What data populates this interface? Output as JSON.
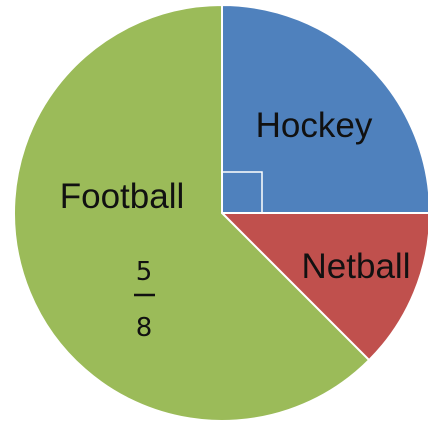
{
  "chart_data": {
    "type": "pie",
    "slices": [
      {
        "label": "Hockey",
        "value": 0.25,
        "color": "#4f81bd"
      },
      {
        "label": "Netball",
        "value": 0.125,
        "color": "#c0504d"
      },
      {
        "label": "Football",
        "value": 0.625,
        "color": "#9bbb59",
        "fraction_numerator": "5",
        "fraction_denominator": "8"
      }
    ],
    "start": "12 o'clock, clockwise",
    "right_angle_marker": true,
    "legend": "none"
  }
}
